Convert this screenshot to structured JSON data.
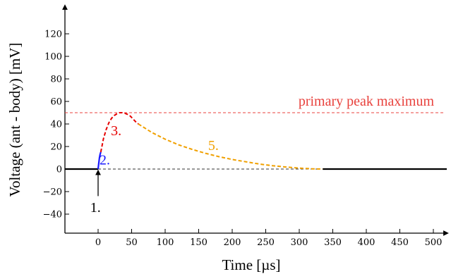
{
  "chart_data": {
    "type": "line",
    "xlabel": "Time [µs]",
    "ylabel": "Voltage (ant - body) [mV]",
    "xlim": [
      -50,
      520
    ],
    "ylim": [
      -50,
      140
    ],
    "x_ticks": [
      0,
      50,
      100,
      150,
      200,
      250,
      300,
      350,
      400,
      450,
      500
    ],
    "x_tick_labels": [
      "0",
      "50",
      "100",
      "150",
      "200",
      "250",
      "300",
      "350",
      "400",
      "450",
      "500"
    ],
    "y_ticks": [
      -40,
      -20,
      0,
      20,
      40,
      60,
      80,
      100,
      120
    ],
    "y_tick_labels": [
      "−40",
      "−20",
      "0",
      "20",
      "40",
      "60",
      "80",
      "100",
      "120"
    ],
    "grid": false,
    "reference_lines": [
      {
        "y": 50,
        "color": "#e8413c",
        "style": "dashed",
        "label": "primary peak maximum"
      },
      {
        "y": 0,
        "color": "#333333",
        "style": "dashed",
        "x_range": [
          0,
          330
        ]
      }
    ],
    "series": [
      {
        "color": "#000000",
        "style": "solid",
        "x": [
          -50,
          0
        ],
        "y": [
          0,
          0
        ]
      },
      {
        "color": "#1a1aff",
        "style": "solid",
        "x": [
          0,
          1,
          2,
          3,
          4
        ],
        "y": [
          0,
          5,
          10,
          13,
          15
        ]
      },
      {
        "color": "#e60000",
        "style": "dashed",
        "x": [
          4,
          8,
          12,
          16,
          20,
          24,
          28,
          32,
          36,
          40,
          44,
          48,
          52,
          56,
          60
        ],
        "y": [
          15,
          27,
          35,
          41,
          45,
          47.5,
          49,
          50,
          50,
          49.5,
          48.5,
          47,
          44.5,
          42,
          40
        ]
      },
      {
        "color": "#f0a000",
        "style": "dashed",
        "x": [
          60,
          80,
          100,
          120,
          140,
          160,
          180,
          200,
          220,
          240,
          260,
          280,
          300,
          320,
          335
        ],
        "y": [
          40,
          32.5,
          26.5,
          21.5,
          17.5,
          14,
          11,
          8.5,
          6.5,
          4.5,
          3,
          1.8,
          0.8,
          0.2,
          0
        ]
      },
      {
        "color": "#000000",
        "style": "solid",
        "x": [
          335,
          520
        ],
        "y": [
          0,
          0
        ]
      }
    ],
    "annotations": [
      {
        "text": "1.",
        "x": -4,
        "y": -38,
        "color": "#000000",
        "arrow_to": [
          0,
          -1
        ]
      },
      {
        "text": "2.",
        "x": 10,
        "y": 4,
        "color": "#1a1aff"
      },
      {
        "text": "3.",
        "x": 27,
        "y": 30,
        "color": "#e60000"
      },
      {
        "text": "5.",
        "x": 172,
        "y": 17,
        "color": "#f0a000"
      }
    ]
  }
}
